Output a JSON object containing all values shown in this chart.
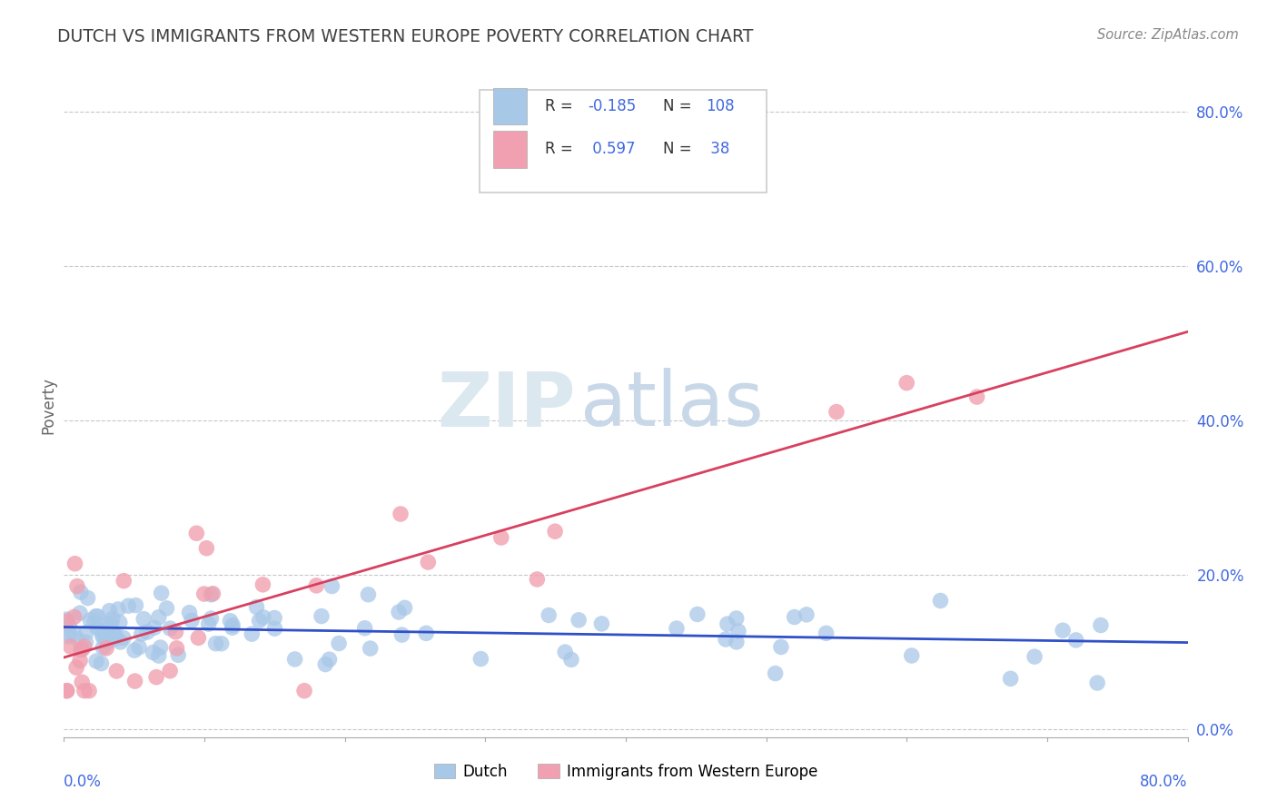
{
  "title": "DUTCH VS IMMIGRANTS FROM WESTERN EUROPE POVERTY CORRELATION CHART",
  "source": "Source: ZipAtlas.com",
  "ylabel": "Poverty",
  "ytick_values": [
    0.0,
    0.2,
    0.4,
    0.6,
    0.8
  ],
  "xlim": [
    0.0,
    0.8
  ],
  "ylim": [
    -0.01,
    0.85
  ],
  "legend_label1": "Dutch",
  "legend_label2": "Immigrants from Western Europe",
  "R1": -0.185,
  "N1": 108,
  "R2": 0.597,
  "N2": 38,
  "color_dutch": "#a8c8e8",
  "color_immig": "#f0a0b0",
  "color_dutch_line": "#3050c8",
  "color_immig_line": "#d84060",
  "background_color": "#ffffff",
  "grid_color": "#c8c8c8",
  "title_color": "#404040",
  "axis_label_color": "#4169e1",
  "right_ytick_color": "#4169e1"
}
